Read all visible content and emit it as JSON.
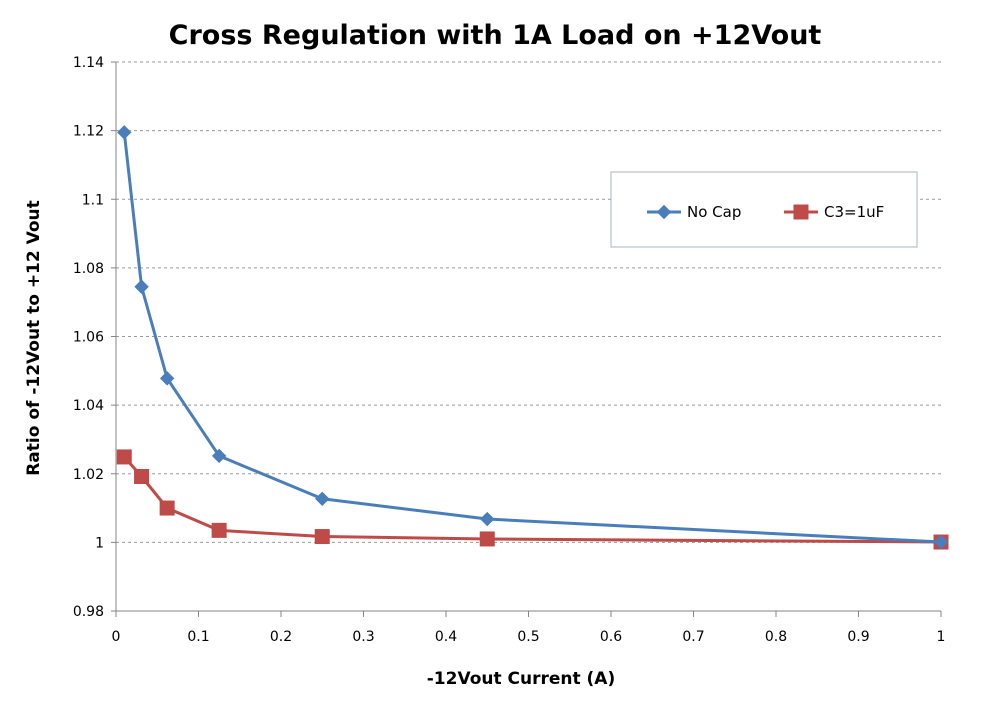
{
  "chart_data": {
    "type": "line",
    "title": "Cross Regulation with 1A Load on +12Vout",
    "xlabel": "-12Vout Current (A)",
    "ylabel": "Ratio of -12Vout to +12 Vout",
    "xlim": [
      0,
      1
    ],
    "ylim": [
      0.98,
      1.14
    ],
    "x_ticks": [
      "0",
      "0.1",
      "0.2",
      "0.3",
      "0.4",
      "0.5",
      "0.6",
      "0.7",
      "0.8",
      "0.9",
      "1"
    ],
    "y_ticks": [
      "0.98",
      "1",
      "1.02",
      "1.04",
      "1.06",
      "1.08",
      "1.1",
      "1.12",
      "1.14"
    ],
    "grid": "horizontal dashed",
    "legend_position": "upper-right",
    "series": [
      {
        "name": "No Cap",
        "color": "#4a7ebb",
        "marker": "diamond",
        "x": [
          0.01,
          0.031,
          0.062,
          0.125,
          0.25,
          0.45,
          1.0
        ],
        "y": [
          1.1195,
          1.0745,
          1.0478,
          1.0252,
          1.0127,
          1.0068,
          1.0001
        ]
      },
      {
        "name": "C3=1uF",
        "color": "#be4b48",
        "marker": "square",
        "x": [
          0.01,
          0.031,
          0.062,
          0.125,
          0.25,
          0.45,
          1.0
        ],
        "y": [
          1.0249,
          1.0192,
          1.01,
          1.0035,
          1.0017,
          1.001,
          1.0001
        ]
      }
    ]
  }
}
